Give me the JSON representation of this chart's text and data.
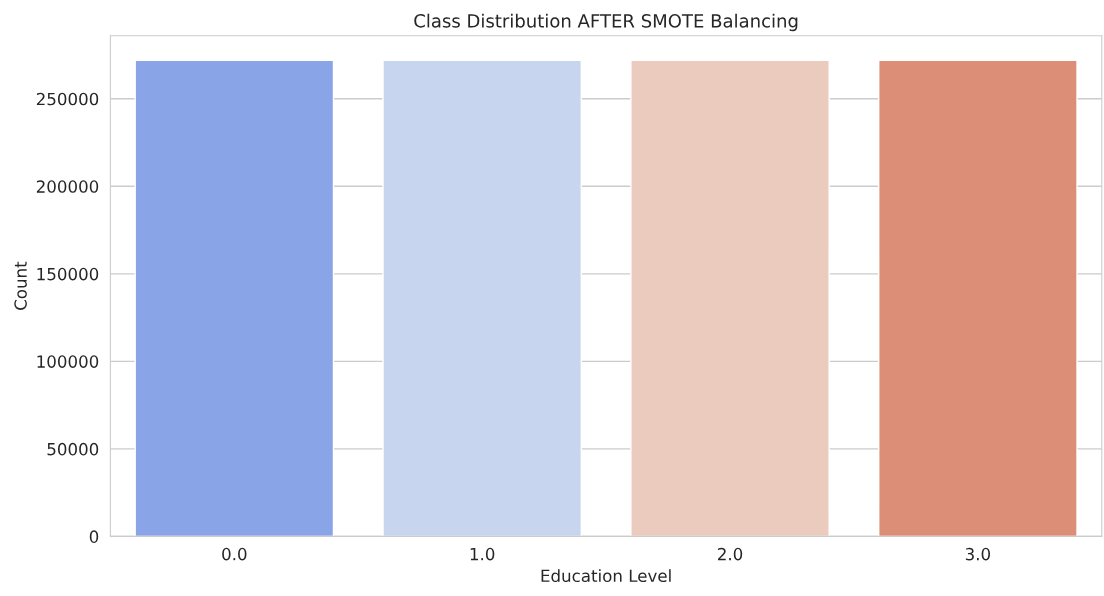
{
  "chart_data": {
    "type": "bar",
    "title": "Class Distribution AFTER SMOTE Balancing",
    "xlabel": "Education Level",
    "ylabel": "Count",
    "categories": [
      "0.0",
      "1.0",
      "2.0",
      "3.0"
    ],
    "values": [
      272000,
      272000,
      272000,
      272000
    ],
    "colors": [
      "#89a5e8",
      "#c8d5ef",
      "#eacbbd",
      "#dc8e77"
    ],
    "ylim": [
      0,
      286000
    ],
    "yticks": [
      0,
      50000,
      100000,
      150000,
      200000,
      250000
    ],
    "grid": "y",
    "legend": false
  }
}
